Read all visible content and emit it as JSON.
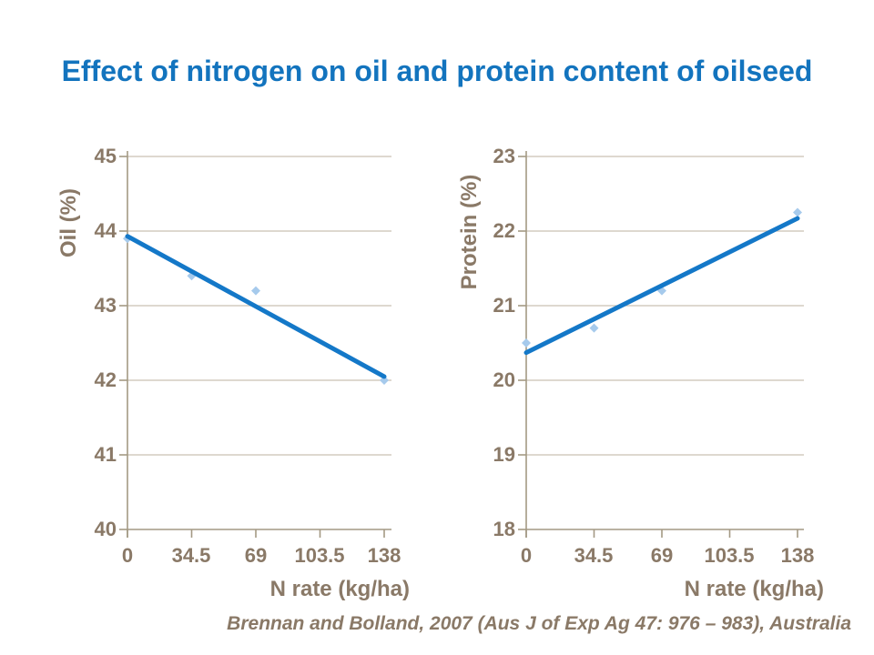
{
  "title": "Effect of nitrogen on oil and protein content of oilseed",
  "citation": "Brennan and Bolland, 2007 (Aus J of Exp Ag 47: 976 – 983), Australia",
  "colors": {
    "title_blue": "#1374BE",
    "trendline_blue": "#1478C8",
    "marker_light_blue": "#A6CAEC",
    "axis_text_brown": "#8A7967",
    "gridline_tan": "#C9C0B2",
    "axis_line_tan": "#A39984"
  },
  "chart_data": [
    {
      "type": "scatter",
      "name": "oil-vs-nitrogen",
      "ylabel": "Oil (%)",
      "xlabel": "N rate (kg/ha)",
      "x": [
        0,
        34.5,
        69,
        138
      ],
      "y": [
        43.9,
        43.4,
        43.2,
        42.0
      ],
      "trendline": {
        "x": [
          0,
          138
        ],
        "y": [
          43.93,
          42.05
        ]
      },
      "xlim": [
        0,
        138
      ],
      "ylim": [
        40,
        45
      ],
      "x_tick_values": [
        0,
        34.5,
        69,
        103.5,
        138
      ],
      "x_tick_labels": [
        "0",
        "34.5",
        "69",
        "103.5",
        "138"
      ],
      "y_tick_values": [
        45,
        44,
        43,
        42,
        41,
        40
      ],
      "y_tick_labels": [
        "45",
        "44",
        "43",
        "42",
        "41",
        "40"
      ],
      "grid": "horizontal",
      "legend": "none",
      "marker": "diamond"
    },
    {
      "type": "scatter",
      "name": "protein-vs-nitrogen",
      "ylabel": "Protein  (%)",
      "xlabel": "N rate (kg/ha)",
      "x": [
        0,
        34.5,
        69,
        138
      ],
      "y": [
        20.5,
        20.7,
        21.2,
        22.25
      ],
      "trendline": {
        "x": [
          0,
          138
        ],
        "y": [
          20.37,
          22.17
        ]
      },
      "xlim": [
        0,
        138
      ],
      "ylim": [
        18,
        23
      ],
      "x_tick_values": [
        0,
        34.5,
        69,
        103.5,
        138
      ],
      "x_tick_labels": [
        "0",
        "34.5",
        "69",
        "103.5",
        "138"
      ],
      "y_tick_values": [
        23,
        22,
        21,
        20,
        19,
        18
      ],
      "y_tick_labels": [
        "23",
        "22",
        "21",
        "20",
        "19",
        "18"
      ],
      "grid": "horizontal",
      "legend": "none",
      "marker": "diamond"
    }
  ]
}
